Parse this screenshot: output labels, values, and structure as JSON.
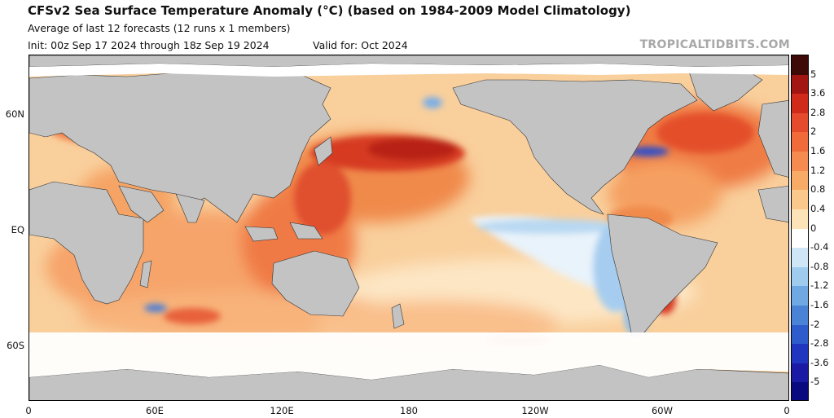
{
  "header": {
    "title": "CFSv2 Sea Surface Temperature Anomaly (°C) (based on 1984-2009 Model Climatology)",
    "line2": "Average of last 12 forecasts (12 runs x 1 members)",
    "init": "Init: 00z Sep 17 2024 through 18z Sep 19 2024",
    "valid": "Valid for: Oct 2024",
    "brand": "TROPICALTIDBITS.COM"
  },
  "axes": {
    "y_ticks": [
      "60N",
      "EQ",
      "60S"
    ],
    "x_ticks": [
      "0",
      "60E",
      "120E",
      "180",
      "120W",
      "60W",
      "0"
    ]
  },
  "colorbar": {
    "labels": [
      "5",
      "3.6",
      "2.8",
      "2",
      "1.6",
      "1.2",
      "0.8",
      "0.4",
      "0",
      "-0.4",
      "-0.8",
      "-1.2",
      "-1.6",
      "-2",
      "-2.8",
      "-3.6",
      "-5"
    ],
    "colors": [
      "#3d0a08",
      "#a31512",
      "#d02b1a",
      "#e44a2b",
      "#f06a3a",
      "#f58b4e",
      "#f8ab67",
      "#fbc88b",
      "#fde3b8",
      "#ffffff",
      "#cfe6f7",
      "#9fcbef",
      "#6fa8e3",
      "#4a82d6",
      "#2f5ccc",
      "#2036bf",
      "#1a1aa5",
      "#0a0a80"
    ]
  },
  "regions": {
    "kuroshio_warm": "strong warm anomaly",
    "equatorial_pacific": "cool anomaly (La Nina pattern)",
    "north_atlantic_coast": "cool anomaly"
  }
}
